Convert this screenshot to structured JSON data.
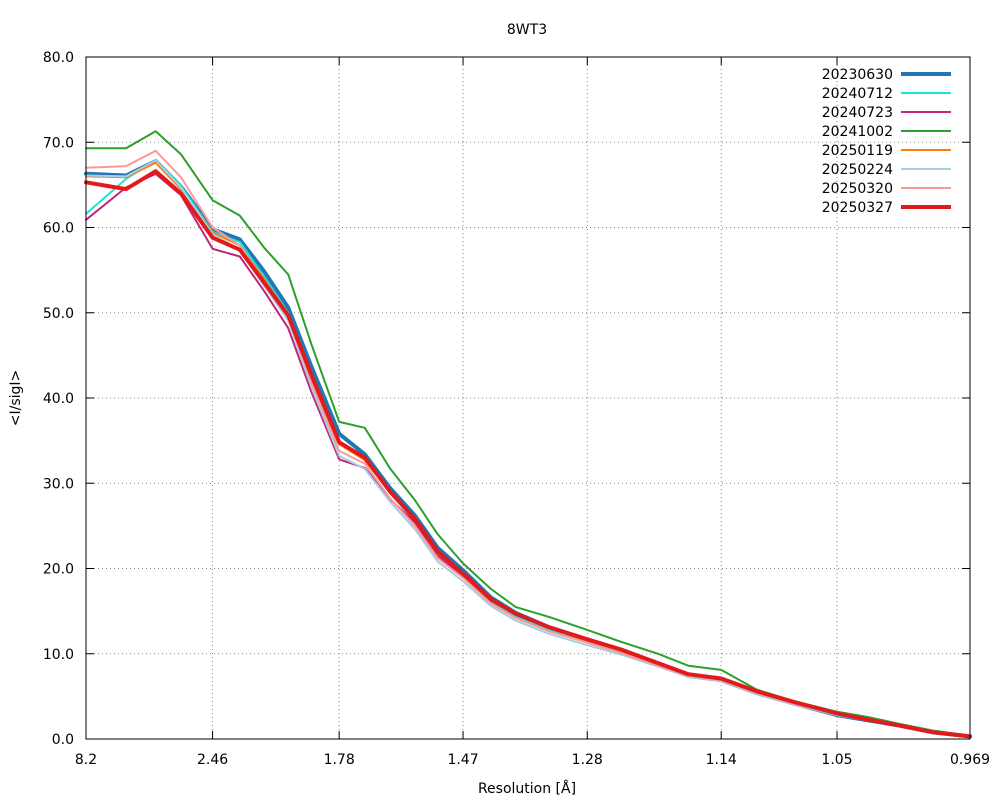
{
  "chart_data": {
    "type": "line",
    "title": "8WT3",
    "xlabel": "Resolution [Å]",
    "ylabel": "<I/sigI>",
    "x_scale": "reciprocal_square",
    "xlim": [
      8.2,
      0.969
    ],
    "ylim": [
      0,
      80
    ],
    "grid": true,
    "legend_position": "top-right",
    "x_ticks": [
      "8.2",
      "2.46",
      "1.78",
      "1.47",
      "1.28",
      "1.14",
      "1.05",
      "0.969"
    ],
    "y_ticks": [
      "0.0",
      "10.0",
      "20.0",
      "30.0",
      "40.0",
      "50.0",
      "60.0",
      "70.0",
      "80.0"
    ],
    "x": [
      8.2,
      4.0,
      3.2,
      2.8,
      2.46,
      2.25,
      2.1,
      1.98,
      1.88,
      1.78,
      1.7,
      1.63,
      1.57,
      1.52,
      1.47,
      1.42,
      1.38,
      1.33,
      1.28,
      1.24,
      1.2,
      1.17,
      1.14,
      1.11,
      1.08,
      1.05,
      1.03,
      1.01,
      0.99,
      0.969
    ],
    "series": [
      {
        "name": "20230630",
        "color": "#1f77b4",
        "width": 4,
        "values": [
          66.3,
          66.1,
          67.8,
          64.8,
          59.8,
          58.6,
          54.8,
          50.6,
          43.6,
          35.8,
          33.4,
          29.4,
          26.2,
          22.4,
          19.8,
          16.6,
          14.8,
          13.1,
          11.6,
          10.4,
          8.7,
          7.4,
          6.9,
          5.4,
          4.1,
          2.8,
          2.2,
          1.6,
          0.8,
          0.3
        ]
      },
      {
        "name": "20240712",
        "color": "#17e3e3",
        "width": 2,
        "values": [
          61.6,
          65.7,
          67.9,
          64.9,
          59.5,
          58.3,
          54.2,
          50.0,
          42.9,
          34.7,
          33.0,
          28.8,
          25.6,
          21.6,
          19.1,
          16.0,
          14.4,
          12.8,
          11.3,
          10.2,
          8.7,
          7.4,
          6.9,
          5.4,
          4.1,
          2.8,
          2.2,
          1.6,
          0.8,
          0.3
        ]
      },
      {
        "name": "20240723",
        "color": "#c2257a",
        "width": 2,
        "values": [
          60.9,
          64.7,
          66.3,
          63.8,
          57.5,
          56.6,
          52.5,
          48.2,
          40.6,
          32.8,
          31.8,
          28.1,
          25.4,
          21.5,
          19.0,
          16.2,
          14.7,
          13.2,
          11.8,
          10.6,
          9.0,
          7.7,
          7.1,
          5.6,
          4.2,
          2.9,
          2.3,
          1.6,
          0.8,
          0.3
        ]
      },
      {
        "name": "20241002",
        "color": "#2ca02c",
        "width": 2,
        "values": [
          69.3,
          69.3,
          71.3,
          68.6,
          63.2,
          61.4,
          57.6,
          54.5,
          46.2,
          37.2,
          36.5,
          31.7,
          28.0,
          24.0,
          20.6,
          17.6,
          15.5,
          14.3,
          12.8,
          11.4,
          10.0,
          8.6,
          8.1,
          5.8,
          4.4,
          3.2,
          2.6,
          1.8,
          1.0,
          0.4
        ]
      },
      {
        "name": "20250119",
        "color": "#ff7f0e",
        "width": 2,
        "values": [
          66.0,
          65.9,
          67.6,
          64.5,
          59.4,
          57.9,
          53.9,
          49.8,
          42.4,
          34.6,
          32.7,
          28.9,
          25.7,
          21.8,
          19.4,
          16.3,
          14.6,
          13.0,
          11.5,
          10.3,
          8.8,
          7.5,
          7.0,
          5.5,
          4.2,
          2.9,
          2.3,
          1.6,
          0.8,
          0.3
        ]
      },
      {
        "name": "20250224",
        "color": "#a6cee3",
        "width": 2,
        "values": [
          66.1,
          66.0,
          67.9,
          64.7,
          59.2,
          57.4,
          53.1,
          49.1,
          41.2,
          33.2,
          31.7,
          27.8,
          24.6,
          20.8,
          18.5,
          15.6,
          13.9,
          12.3,
          11.0,
          9.9,
          8.5,
          7.3,
          6.8,
          5.3,
          4.0,
          2.8,
          2.2,
          1.5,
          0.8,
          0.3
        ]
      },
      {
        "name": "20250320",
        "color": "#fb9a99",
        "width": 2,
        "values": [
          67.0,
          67.2,
          69.0,
          65.9,
          60.0,
          57.9,
          53.6,
          49.5,
          41.8,
          33.8,
          32.3,
          28.2,
          25.0,
          21.2,
          18.9,
          15.9,
          14.2,
          12.6,
          11.3,
          10.1,
          8.6,
          7.4,
          6.9,
          5.4,
          4.1,
          2.9,
          2.3,
          1.6,
          0.8,
          0.3
        ]
      },
      {
        "name": "20250327",
        "color": "#e31a1c",
        "width": 4,
        "values": [
          65.3,
          64.5,
          66.6,
          64.0,
          58.8,
          57.4,
          53.5,
          49.7,
          42.6,
          34.8,
          33.0,
          29.0,
          25.8,
          22.0,
          19.4,
          16.4,
          14.7,
          13.1,
          11.7,
          10.5,
          8.9,
          7.6,
          7.1,
          5.6,
          4.3,
          3.0,
          2.3,
          1.6,
          0.8,
          0.3
        ]
      }
    ]
  }
}
